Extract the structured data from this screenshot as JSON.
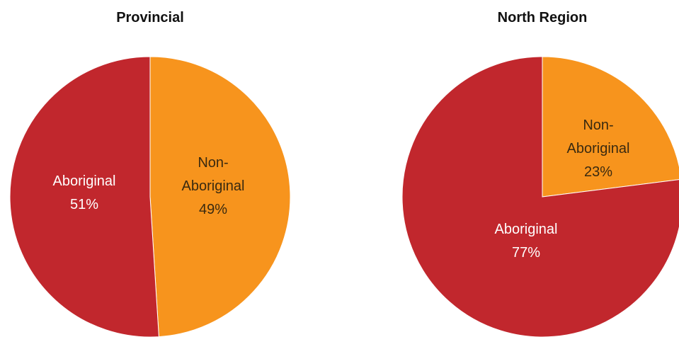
{
  "chart_data": [
    {
      "type": "pie",
      "title": "Provincial",
      "slices": [
        {
          "label": [
            "Aboriginal"
          ],
          "value": 51,
          "pct_text": "51%",
          "color": "#c1272d"
        },
        {
          "label": [
            "Non-",
            "Aboriginal"
          ],
          "value": 49,
          "pct_text": "49%",
          "color": "#f7941d"
        }
      ]
    },
    {
      "type": "pie",
      "title": "North Region",
      "slices": [
        {
          "label": [
            "Aboriginal"
          ],
          "value": 77,
          "pct_text": "77%",
          "color": "#c1272d"
        },
        {
          "label": [
            "Non-",
            "Aboriginal"
          ],
          "value": 23,
          "pct_text": "23%",
          "color": "#f7941d"
        }
      ]
    }
  ]
}
